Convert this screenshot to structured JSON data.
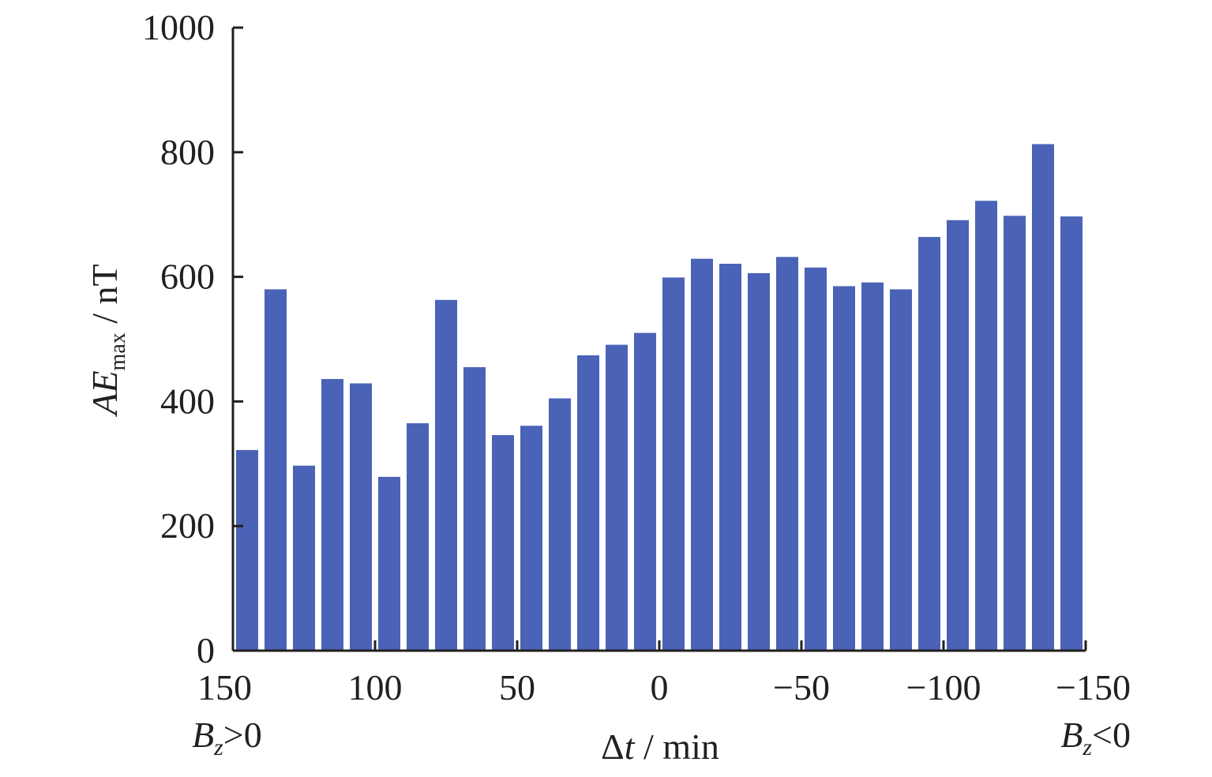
{
  "chart_data": {
    "type": "bar",
    "bar_color": "#4a63b7",
    "axis_color": "#231f20",
    "x_domain": [
      150,
      -150
    ],
    "x_ticks": [
      150,
      100,
      50,
      0,
      -50,
      -100,
      -150
    ],
    "x_tick_labels": [
      "150",
      "100",
      "50",
      "0",
      "−50",
      "−100",
      "−150"
    ],
    "x_centers": [
      145,
      135,
      125,
      115,
      105,
      95,
      85,
      75,
      65,
      55,
      45,
      35,
      25,
      15,
      5,
      -5,
      -15,
      -25,
      -35,
      -45,
      -55,
      -65,
      -75,
      -85,
      -95,
      -105,
      -115,
      -125,
      -135,
      -145
    ],
    "values": [
      322,
      580,
      297,
      436,
      429,
      279,
      365,
      563,
      455,
      346,
      361,
      405,
      474,
      491,
      510,
      599,
      629,
      621,
      606,
      632,
      615,
      585,
      591,
      580,
      664,
      691,
      722,
      698,
      813,
      697
    ],
    "ylim": [
      0,
      1000
    ],
    "y_ticks": [
      0,
      200,
      400,
      600,
      800,
      1000
    ],
    "xlabel": {
      "delta": "Δ",
      "var": "t",
      "rest": " / min"
    },
    "ylabel": {
      "var": "AE",
      "sub": "max",
      "rest": " / nT"
    },
    "left_annotation": {
      "var": "B",
      "sub": "z",
      "rest": ">0"
    },
    "right_annotation": {
      "var": "B",
      "sub": "z",
      "rest": "<0"
    }
  }
}
